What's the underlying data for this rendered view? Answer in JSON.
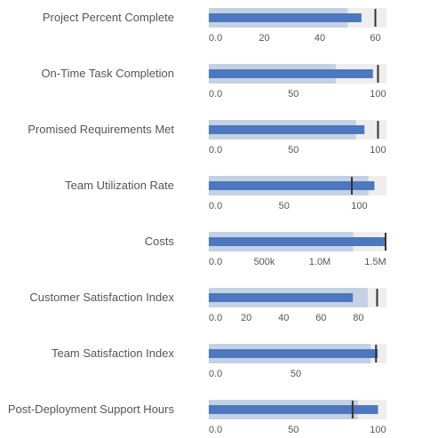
{
  "colors": {
    "background": "#ffffff",
    "band_outer": "#eeeeee",
    "band_range": "#c4d1e2",
    "bar": "#4d78c0",
    "target": "#333333",
    "label": "#555555"
  },
  "chart_data": {
    "type": "bullet",
    "legend": "none",
    "grid": false,
    "rows": [
      {
        "label": "Project Percent Complete",
        "axis_max": 64,
        "range": 50,
        "value": 55,
        "target": 60,
        "ticks": [
          {
            "v": 0,
            "t": "0.0"
          },
          {
            "v": 20,
            "t": "20"
          },
          {
            "v": 40,
            "t": "40"
          },
          {
            "v": 60,
            "t": "60"
          }
        ]
      },
      {
        "label": "On-Time Task Completion",
        "axis_max": 105,
        "range": 75,
        "value": 97,
        "target": 100,
        "ticks": [
          {
            "v": 0,
            "t": "0.0"
          },
          {
            "v": 50,
            "t": "50"
          },
          {
            "v": 100,
            "t": "100"
          }
        ]
      },
      {
        "label": "Promised Requirements Met",
        "axis_max": 105,
        "range": 87,
        "value": 92,
        "target": 100,
        "ticks": [
          {
            "v": 0,
            "t": "0.0"
          },
          {
            "v": 50,
            "t": "50"
          },
          {
            "v": 100,
            "t": "100"
          }
        ]
      },
      {
        "label": "Team Utilization Rate",
        "axis_max": 118,
        "range": 106,
        "value": 110,
        "target": 95,
        "ticks": [
          {
            "v": 0,
            "t": "0.0"
          },
          {
            "v": 50,
            "t": "50"
          },
          {
            "v": 100,
            "t": "100"
          }
        ]
      },
      {
        "label": "Costs",
        "axis_max": 1600000,
        "range": 1300000,
        "value": 1600000,
        "target": 1600000,
        "ticks": [
          {
            "v": 0,
            "t": "0.0"
          },
          {
            "v": 500000,
            "t": "500k"
          },
          {
            "v": 1000000,
            "t": "1.0M"
          },
          {
            "v": 1500000,
            "t": "1.5M"
          }
        ]
      },
      {
        "label": "Customer Satisfaction Index",
        "axis_max": 95,
        "range": 85,
        "value": 77,
        "target": 90,
        "ticks": [
          {
            "v": 0,
            "t": "0.0"
          },
          {
            "v": 20,
            "t": "20"
          },
          {
            "v": 40,
            "t": "40"
          },
          {
            "v": 60,
            "t": "60"
          },
          {
            "v": 80,
            "t": "80"
          }
        ]
      },
      {
        "label": "Team Satisfaction Index",
        "axis_max": 102,
        "range": 93,
        "value": 97,
        "target": 96,
        "ticks": [
          {
            "v": 0,
            "t": "0.0"
          },
          {
            "v": 50,
            "t": "50"
          }
        ]
      },
      {
        "label": "Post-Deployment Support Hours",
        "axis_max": 105,
        "range": 88,
        "value": 100,
        "target": 85,
        "ticks": [
          {
            "v": 0,
            "t": "0.0"
          },
          {
            "v": 50,
            "t": "50"
          },
          {
            "v": 100,
            "t": "100"
          }
        ]
      }
    ]
  }
}
